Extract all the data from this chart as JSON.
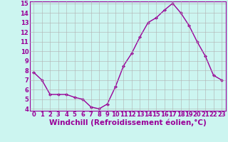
{
  "hours": [
    0,
    1,
    2,
    3,
    4,
    5,
    6,
    7,
    8,
    9,
    10,
    11,
    12,
    13,
    14,
    15,
    16,
    17,
    18,
    19,
    20,
    21,
    22,
    23
  ],
  "values": [
    7.8,
    7.0,
    5.5,
    5.5,
    5.5,
    5.2,
    5.0,
    4.2,
    4.0,
    4.5,
    6.3,
    8.5,
    9.8,
    11.5,
    13.0,
    13.5,
    14.3,
    15.0,
    14.0,
    12.7,
    11.0,
    9.5,
    7.5,
    7.0
  ],
  "line_color": "#990099",
  "marker": "D",
  "marker_size": 2,
  "bg_color": "#ccf5f0",
  "grid_color": "#b0b0b0",
  "xlabel": "Windchill (Refroidissement éolien,°C)",
  "xlabel_color": "#990099",
  "tick_color": "#990099",
  "ylim": [
    3.8,
    15.2
  ],
  "yticks": [
    4,
    5,
    6,
    7,
    8,
    9,
    10,
    11,
    12,
    13,
    14,
    15
  ],
  "xticks": [
    0,
    1,
    2,
    3,
    4,
    5,
    6,
    7,
    8,
    9,
    10,
    11,
    12,
    13,
    14,
    15,
    16,
    17,
    18,
    19,
    20,
    21,
    22,
    23
  ],
  "tick_fontsize": 6,
  "xlabel_fontsize": 7.5,
  "spine_color": "#990099",
  "line_width": 1.0
}
